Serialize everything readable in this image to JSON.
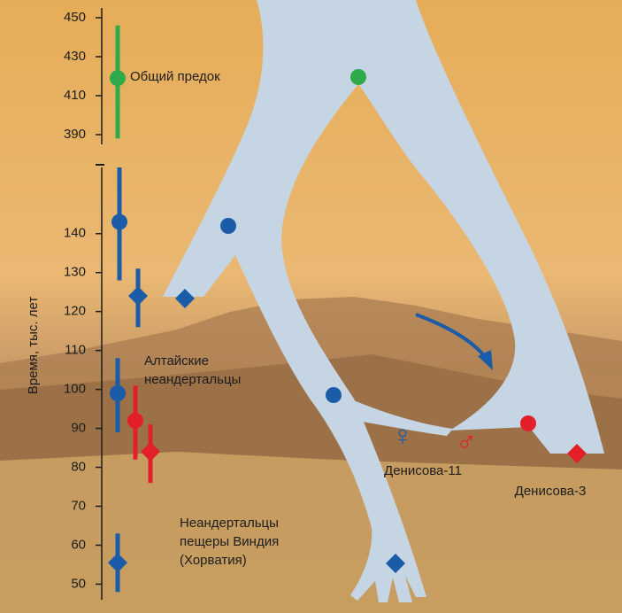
{
  "chart_data": {
    "type": "errorbar",
    "ylabel": "Время, тыс. лет",
    "upper": {
      "ylim": [
        385,
        455
      ],
      "yticks": [
        390,
        410,
        430,
        450
      ],
      "points": [
        {
          "value": 419,
          "low": 388,
          "high": 446,
          "color": "#2eaa4a",
          "marker": "circle"
        }
      ]
    },
    "lower": {
      "ylim": [
        46,
        157
      ],
      "yticks": [
        50,
        60,
        70,
        80,
        90,
        100,
        110,
        120,
        130,
        140
      ],
      "points": [
        {
          "value": 143,
          "low": 128,
          "high": 157,
          "color": "#1a5ca8",
          "marker": "circle"
        },
        {
          "value": 124,
          "low": 116,
          "high": 131,
          "color": "#1a5ca8",
          "marker": "diamond"
        },
        {
          "value": 99,
          "low": 89,
          "high": 108,
          "color": "#1a5ca8",
          "marker": "circle"
        },
        {
          "value": 92,
          "low": 82,
          "high": 101,
          "color": "#e3202a",
          "marker": "circle"
        },
        {
          "value": 84,
          "low": 76,
          "high": 91,
          "color": "#e3202a",
          "marker": "diamond"
        },
        {
          "value": 55.5,
          "low": 48,
          "high": 63,
          "color": "#1a5ca8",
          "marker": "diamond"
        }
      ]
    },
    "annotations": [
      {
        "lines": [
          "Общий предок"
        ]
      },
      {
        "lines": [
          "Алтайские",
          "неандертальцы"
        ]
      },
      {
        "lines": [
          "Неандертальцы",
          "пещеры Виндия",
          "(Хорватия)"
        ]
      },
      {
        "lines": [
          "Денисова-11"
        ]
      },
      {
        "lines": [
          "Денисова-3"
        ]
      },
      {
        "lines": [
          "♀"
        ]
      },
      {
        "lines": [
          "♂"
        ]
      }
    ]
  }
}
